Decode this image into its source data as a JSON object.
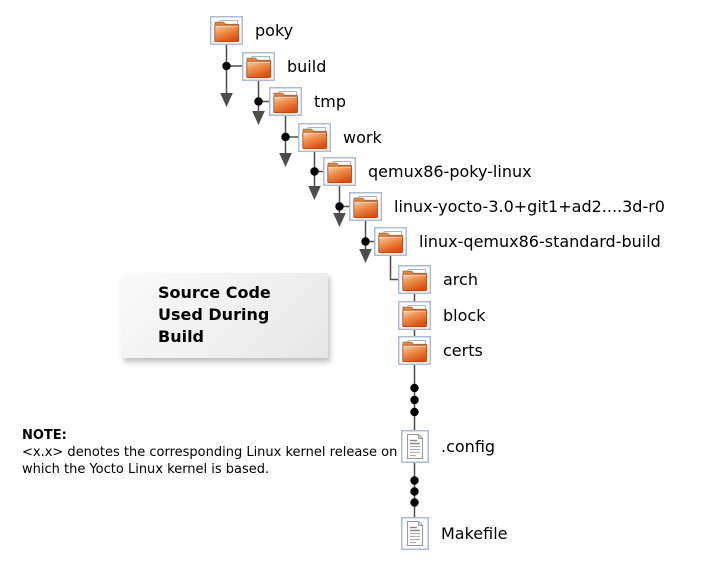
{
  "figure": {
    "tree": {
      "nodes": [
        {
          "id": "poky",
          "label": "poky",
          "icon": "folder"
        },
        {
          "id": "build",
          "label": "build",
          "icon": "folder"
        },
        {
          "id": "tmp",
          "label": "tmp",
          "icon": "folder"
        },
        {
          "id": "work",
          "label": "work",
          "icon": "folder"
        },
        {
          "id": "qemux86-poky-linux",
          "label": "qemux86-poky-linux",
          "icon": "folder"
        },
        {
          "id": "linux-yocto",
          "label": "linux-yocto-3.0+git1+ad2....3d-r0",
          "icon": "folder"
        },
        {
          "id": "linux-qemux86-standard-build",
          "label": "linux-qemux86-standard-build",
          "icon": "folder"
        },
        {
          "id": "arch",
          "label": "arch",
          "icon": "folder"
        },
        {
          "id": "block",
          "label": "block",
          "icon": "folder"
        },
        {
          "id": "certs",
          "label": "certs",
          "icon": "folder"
        },
        {
          "id": "config",
          "label": ".config",
          "icon": "file"
        },
        {
          "id": "makefile",
          "label": "Makefile",
          "icon": "file"
        }
      ]
    },
    "callout": {
      "line1": "Source Code",
      "line2": "Used During",
      "line3": "Build"
    },
    "note": {
      "label": "NOTE:",
      "line1": "<x.x> denotes the corresponding Linux kernel release on",
      "line2": "which the Yocto Linux kernel is based."
    },
    "colors": {
      "folder_orange_light": "#fbd9ae",
      "folder_orange_mid": "#f0914d",
      "folder_orange_dark": "#db4f14",
      "icon_frame_blue": "#a9bcd9",
      "connector_gray": "#4d4d4d",
      "dot_black": "#000000",
      "callout_bg_light": "#fafafa",
      "callout_bg_dark": "#e6e6e6",
      "text_black": "#000000"
    }
  }
}
